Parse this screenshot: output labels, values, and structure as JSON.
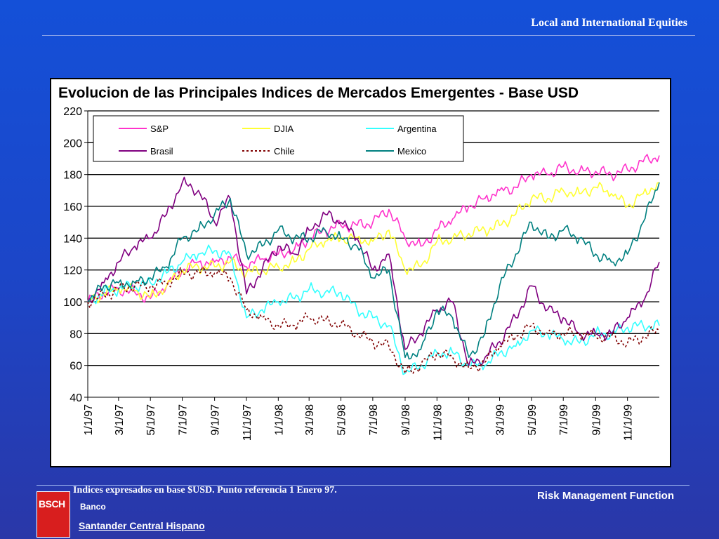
{
  "header": {
    "title": "Local and International Equities"
  },
  "footer": {
    "note": "Indices expresados en  base $USD. Punto referencia  1 Enero 97.",
    "logo_text": "BSCH",
    "bank_label": "Banco",
    "bank_name": "Santander Central Hispano",
    "function_label": "Risk Management Function"
  },
  "chart_data": {
    "type": "line",
    "title": "Evolucion de las Principales Indices de Mercados Emergentes - Base USD",
    "xlabel": "",
    "ylabel": "",
    "ylim": [
      40,
      220
    ],
    "yticks": [
      40,
      60,
      80,
      100,
      120,
      140,
      160,
      180,
      200,
      220
    ],
    "grid": true,
    "legend_position": "top-left",
    "x_range": [
      "1/1/97",
      "1/1/2000"
    ],
    "x_tick_labels": [
      "1/1/97",
      "3/1/97",
      "5/1/97",
      "7/1/97",
      "9/1/97",
      "11/1/97",
      "1/1/98",
      "3/1/98",
      "5/1/98",
      "7/1/98",
      "9/1/98",
      "11/1/98",
      "1/1/99",
      "3/1/99",
      "5/1/99",
      "7/1/99",
      "9/1/99",
      "11/1/99"
    ],
    "x": [
      "1/1/97",
      "2/1/97",
      "3/1/97",
      "4/1/97",
      "5/1/97",
      "6/1/97",
      "7/1/97",
      "8/1/97",
      "9/1/97",
      "10/1/97",
      "11/1/97",
      "12/1/97",
      "1/1/98",
      "2/1/98",
      "3/1/98",
      "4/1/98",
      "5/1/98",
      "6/1/98",
      "7/1/98",
      "8/1/98",
      "9/1/98",
      "10/1/98",
      "11/1/98",
      "12/1/98",
      "1/1/99",
      "2/1/99",
      "3/1/99",
      "4/1/99",
      "5/1/99",
      "6/1/99",
      "7/1/99",
      "8/1/99",
      "9/1/99",
      "10/1/99",
      "11/1/99",
      "12/1/99",
      "1/1/2000"
    ],
    "series": [
      {
        "name": "S&P",
        "color": "#ff33cc",
        "dash": "",
        "values": [
          100,
          106,
          108,
          106,
          102,
          110,
          120,
          125,
          125,
          128,
          122,
          127,
          130,
          133,
          140,
          145,
          148,
          148,
          150,
          158,
          140,
          135,
          145,
          152,
          160,
          165,
          170,
          172,
          180,
          180,
          185,
          182,
          182,
          180,
          183,
          188,
          192
        ]
      },
      {
        "name": "DJIA",
        "color": "#ffff33",
        "dash": "",
        "values": [
          100,
          105,
          108,
          107,
          103,
          110,
          120,
          122,
          122,
          125,
          118,
          120,
          122,
          125,
          133,
          138,
          140,
          140,
          138,
          145,
          120,
          122,
          138,
          140,
          143,
          145,
          148,
          155,
          165,
          165,
          170,
          168,
          172,
          168,
          160,
          168,
          175
        ]
      },
      {
        "name": "Argentina",
        "color": "#33ffff",
        "dash": "",
        "values": [
          100,
          106,
          108,
          110,
          112,
          118,
          125,
          130,
          132,
          130,
          90,
          95,
          100,
          102,
          108,
          106,
          106,
          95,
          90,
          85,
          55,
          60,
          68,
          68,
          60,
          60,
          68,
          72,
          82,
          80,
          76,
          74,
          80,
          80,
          84,
          85,
          85
        ]
      },
      {
        "name": "Brasil",
        "color": "#800080",
        "dash": "",
        "values": [
          100,
          112,
          125,
          135,
          140,
          155,
          175,
          170,
          150,
          165,
          105,
          120,
          135,
          130,
          145,
          155,
          150,
          140,
          120,
          130,
          70,
          80,
          95,
          100,
          60,
          65,
          75,
          90,
          110,
          95,
          90,
          80,
          80,
          80,
          90,
          100,
          125
        ]
      },
      {
        "name": "Chile",
        "color": "#800000",
        "dash": "3 3",
        "values": [
          100,
          104,
          108,
          110,
          110,
          112,
          118,
          118,
          118,
          115,
          95,
          90,
          85,
          85,
          90,
          88,
          86,
          80,
          75,
          72,
          55,
          60,
          68,
          65,
          58,
          62,
          72,
          78,
          85,
          80,
          80,
          80,
          78,
          78,
          74,
          78,
          82
        ]
      },
      {
        "name": "Mexico",
        "color": "#008080",
        "dash": "",
        "values": [
          100,
          110,
          112,
          112,
          115,
          122,
          140,
          145,
          155,
          165,
          130,
          135,
          145,
          140,
          140,
          145,
          140,
          135,
          115,
          120,
          65,
          70,
          95,
          90,
          65,
          80,
          110,
          130,
          150,
          140,
          145,
          140,
          130,
          125,
          130,
          150,
          175
        ]
      }
    ]
  }
}
